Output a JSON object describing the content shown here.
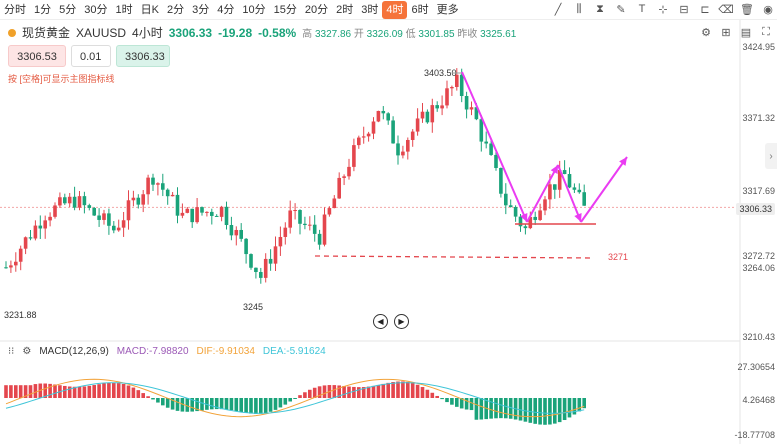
{
  "toolbar": {
    "timeframes": [
      "分时",
      "1分",
      "5分",
      "30分",
      "1时",
      "日K",
      "2分",
      "3分",
      "4分",
      "10分",
      "15分",
      "20分",
      "2时",
      "3时",
      "4时",
      "6时",
      "更多"
    ],
    "active_index": 14
  },
  "header": {
    "name": "现货黄金",
    "symbol": "XAUUSD",
    "interval": "4小时",
    "price": "3306.33",
    "change": "-19.28",
    "change_pct": "-0.58%",
    "high_label": "高",
    "high": "3327.86",
    "open_label": "开",
    "open": "3326.09",
    "low_label": "低",
    "low": "3301.85",
    "prev_label": "昨收",
    "prev": "3325.61"
  },
  "orders": {
    "sell": "3306.53",
    "qty": "0.01",
    "buy": "3306.33"
  },
  "hint": "按 [空格]可显示主图指标线",
  "price_axis": [
    "3424.95",
    "3371.32",
    "3317.69",
    "3272.72",
    "3264.06",
    "3210.43"
  ],
  "current_price_tag": "3306.33",
  "annotations": {
    "high": "3403.50",
    "low": "3245",
    "left_low": "3231.88",
    "level": "3271"
  },
  "macd": {
    "title": "MACD(12,26,9)",
    "macd_label": "MACD:",
    "macd_value": "-7.98820",
    "dif_label": "DIF:",
    "dif_value": "-9.91034",
    "dea_label": "DEA:",
    "dea_value": "-5.91624",
    "axis": [
      "27.30654",
      "4.26468",
      "-18.77708"
    ]
  },
  "colors": {
    "up": "#e4464d",
    "down": "#1aa37a",
    "dif": "#f2a33a",
    "dea": "#3fc5d8",
    "macd_label": "#9b59b6",
    "arrows": "#ea3cf2",
    "level": "#e4464d"
  }
}
